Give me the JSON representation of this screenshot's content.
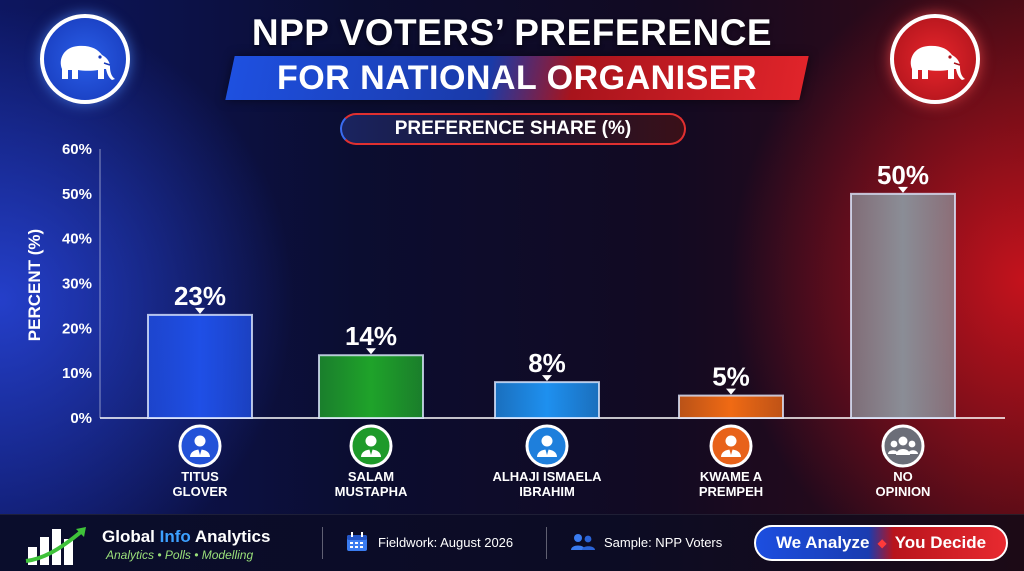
{
  "header": {
    "title_line1": "NPP VOTERS’ PREFERENCE",
    "title_line2": "FOR NATIONAL ORGANISER",
    "subtitle": "PREFERENCE SHARE (%)",
    "logo_left_icon": "elephant-icon",
    "logo_right_icon": "elephant-icon"
  },
  "chart_data": {
    "type": "bar",
    "title": "PREFERENCE SHARE (%)",
    "ylabel": "PERCENT (%)",
    "xlabel": "",
    "ylim": [
      0,
      60
    ],
    "yticks": [
      0,
      10,
      20,
      30,
      40,
      50,
      60
    ],
    "ytick_labels": [
      "0%",
      "10%",
      "20%",
      "30%",
      "40%",
      "50%",
      "60%"
    ],
    "grid": true,
    "categories": [
      [
        "TITUS",
        "GLOVER"
      ],
      [
        "SALAM",
        "MUSTAPHA"
      ],
      [
        "ALHAJI ISMAELA",
        "IBRAHIM"
      ],
      [
        "KWAME A",
        "PREMPEH"
      ],
      [
        "NO",
        "OPINION"
      ]
    ],
    "values": [
      23,
      14,
      8,
      5,
      50
    ],
    "data_labels": [
      "23%",
      "14%",
      "8%",
      "5%",
      "50%"
    ],
    "bar_colors": [
      "#1f4fe6",
      "#1fa32a",
      "#1e90ef",
      "#f06a14",
      "#8a8d96"
    ],
    "category_icons": [
      "person-icon",
      "person-icon",
      "person-icon",
      "person-icon",
      "group-icon"
    ],
    "icon_colors": [
      "#2352d8",
      "#1e9a2a",
      "#1e7fdc",
      "#e8621a",
      "#6b6e78"
    ]
  },
  "footer": {
    "brand_part1": "Global ",
    "brand_part2": "Info",
    "brand_part3": " Analytics",
    "tagline": "Analytics • Polls • Modelling",
    "fieldwork": "Fieldwork: August 2026",
    "sample": "Sample: NPP Voters",
    "slogan_left": "We Analyze",
    "slogan_sep": "◆",
    "slogan_right": "You Decide"
  }
}
